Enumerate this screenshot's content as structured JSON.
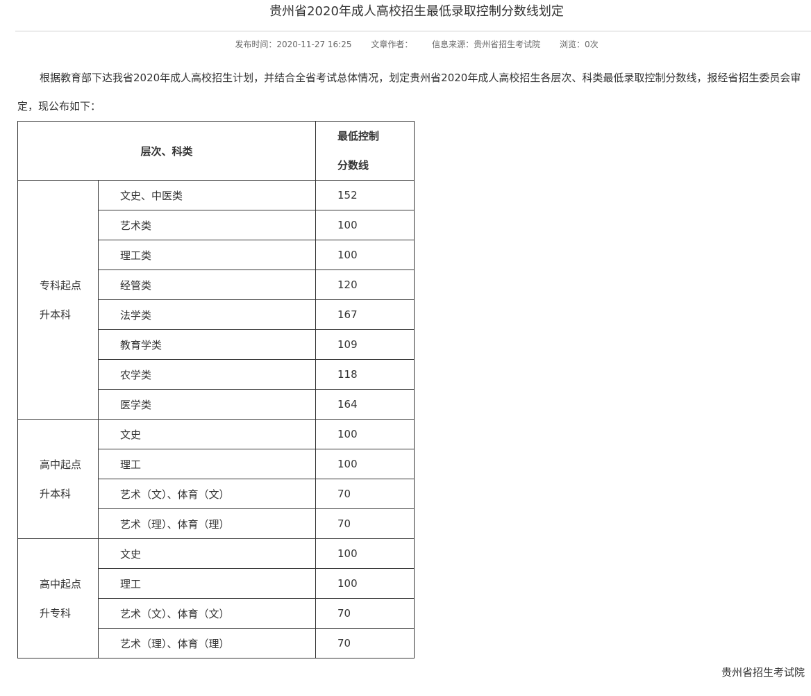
{
  "title": "贵州省2020年成人高校招生最低录取控制分数线划定",
  "meta": {
    "publish_time": "发布时间：2020-11-27 16:25",
    "author": "文章作者：",
    "source": "信息来源：贵州省招生考试院",
    "views": "浏览：0次"
  },
  "paragraph": "根据教育部下达我省2020年成人高校招生计划，并结合全省考试总体情况，划定贵州省2020年成人高校招生各层次、科类最低录取控制分数线，报经省招生委员会审定，现公布如下：",
  "table": {
    "header_category": "层次、科类",
    "header_score_line1": "最低控制",
    "header_score_line2": "分数线",
    "groups": [
      {
        "line1": "专科起点",
        "line2": "升本科",
        "rows": [
          {
            "subject": "文史、中医类",
            "score": "152"
          },
          {
            "subject": "艺术类",
            "score": "100"
          },
          {
            "subject": "理工类",
            "score": "100"
          },
          {
            "subject": "经管类",
            "score": "120"
          },
          {
            "subject": "法学类",
            "score": "167"
          },
          {
            "subject": "教育学类",
            "score": "109"
          },
          {
            "subject": "农学类",
            "score": "118"
          },
          {
            "subject": "医学类",
            "score": "164"
          }
        ]
      },
      {
        "line1": "高中起点",
        "line2": "升本科",
        "rows": [
          {
            "subject": "文史",
            "score": "100"
          },
          {
            "subject": "理工",
            "score": "100"
          },
          {
            "subject": "艺术（文）、体育（文）",
            "score": "70"
          },
          {
            "subject": "艺术（理）、体育（理）",
            "score": "70"
          }
        ]
      },
      {
        "line1": "高中起点",
        "line2": "升专科",
        "rows": [
          {
            "subject": "文史",
            "score": "100"
          },
          {
            "subject": "理工",
            "score": "100"
          },
          {
            "subject": "艺术（文）、体育（文）",
            "score": "70"
          },
          {
            "subject": "艺术（理）、体育（理）",
            "score": "70"
          }
        ]
      }
    ]
  },
  "signature": "贵州省招生考试院"
}
